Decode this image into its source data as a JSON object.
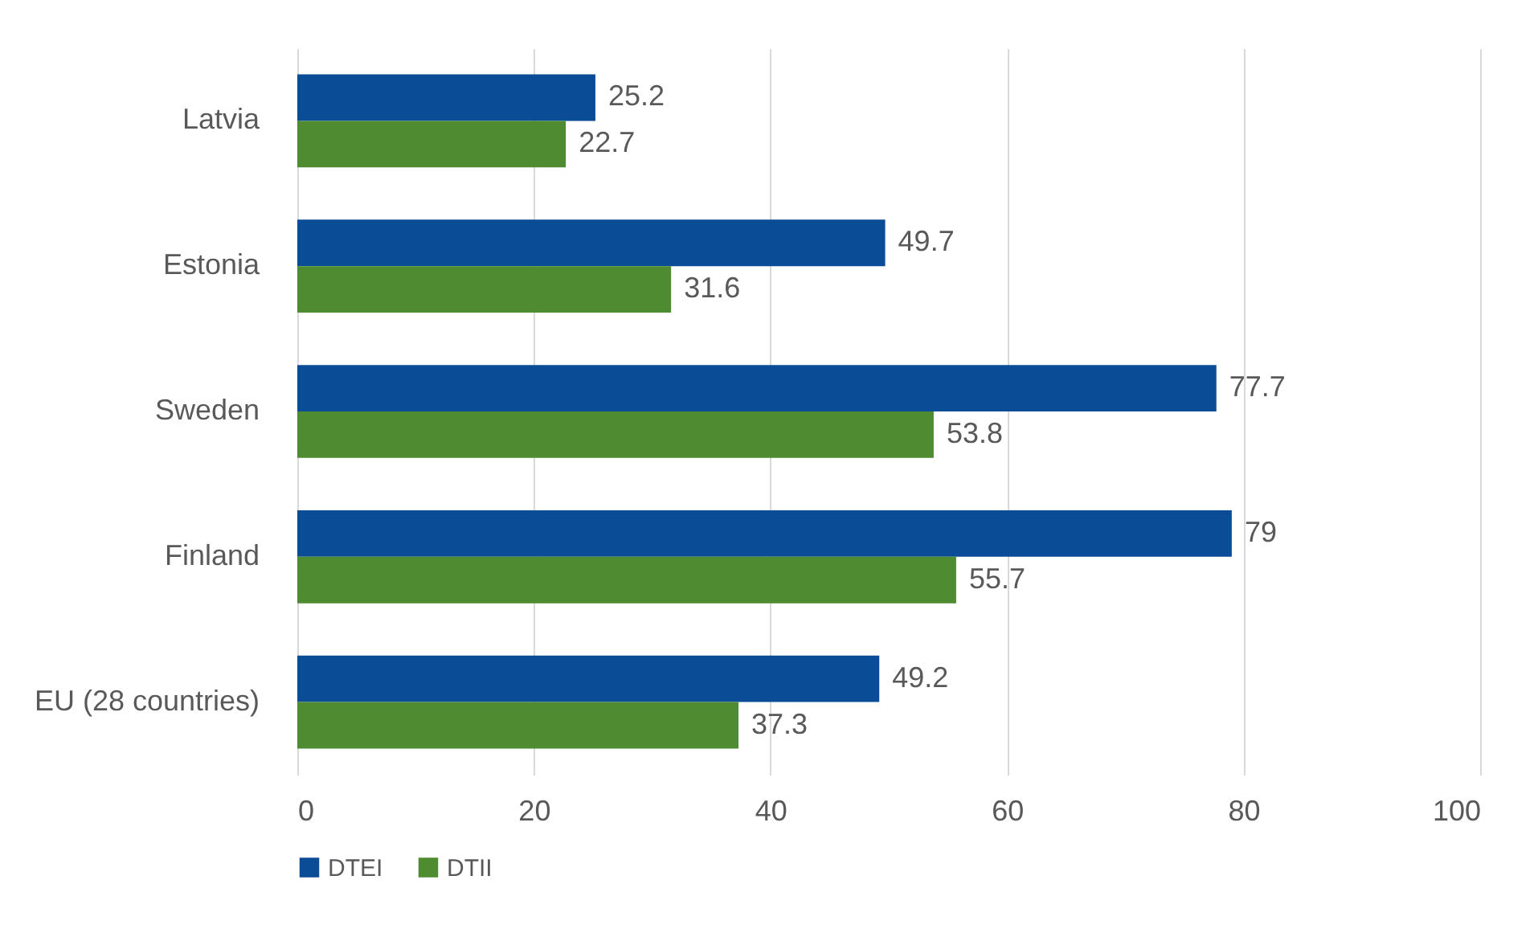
{
  "chart_data": {
    "type": "bar",
    "orientation": "horizontal",
    "categories": [
      "Latvia",
      "Estonia",
      "Sweden",
      "Finland",
      "EU (28 countries)"
    ],
    "series": [
      {
        "name": "DTEI",
        "color": "#0b4c97",
        "values": [
          25.2,
          49.7,
          77.7,
          79,
          49.2
        ]
      },
      {
        "name": "DTII",
        "color": "#4e8b31",
        "values": [
          22.7,
          31.6,
          53.8,
          55.7,
          37.3
        ]
      }
    ],
    "xlim": [
      0,
      100
    ],
    "xticks": [
      0,
      20,
      40,
      60,
      80,
      100
    ],
    "grid": "x",
    "legend": "bottom",
    "data_labels": true
  }
}
